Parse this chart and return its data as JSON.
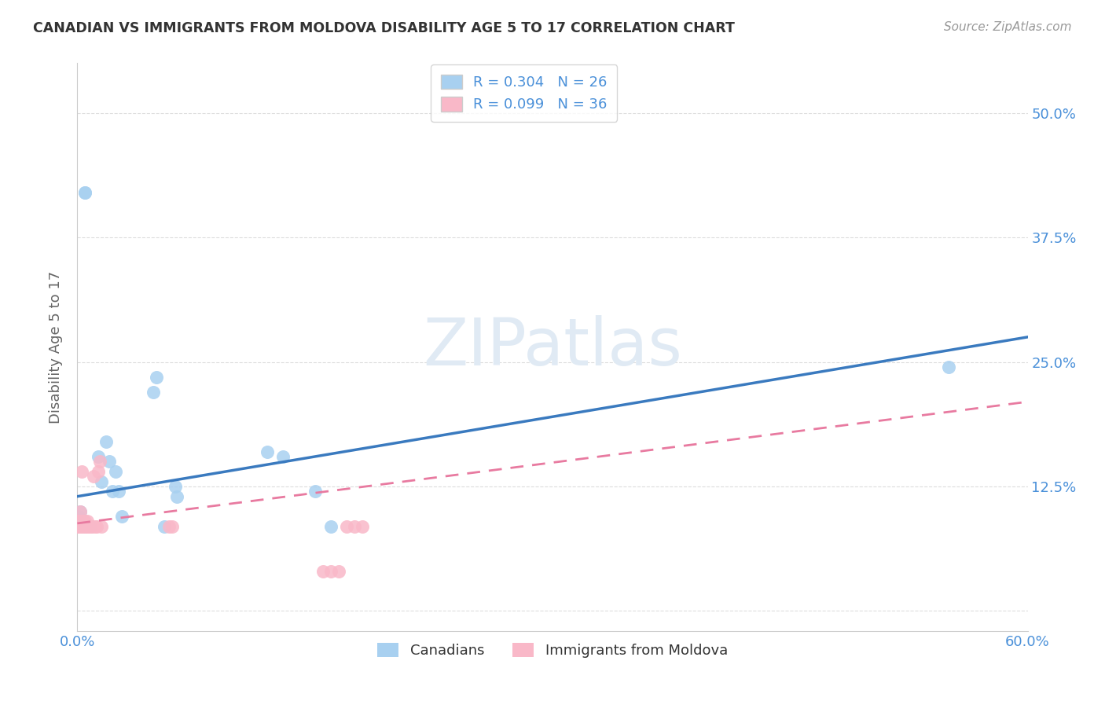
{
  "title": "CANADIAN VS IMMIGRANTS FROM MOLDOVA DISABILITY AGE 5 TO 17 CORRELATION CHART",
  "source": "Source: ZipAtlas.com",
  "ylabel": "Disability Age 5 to 17",
  "xlim": [
    0.0,
    0.6
  ],
  "ylim": [
    -0.02,
    0.55
  ],
  "yticks": [
    0.0,
    0.125,
    0.25,
    0.375,
    0.5
  ],
  "ytick_labels": [
    "",
    "12.5%",
    "25.0%",
    "37.5%",
    "50.0%"
  ],
  "xticks": [
    0.0,
    0.1,
    0.2,
    0.3,
    0.4,
    0.5,
    0.6
  ],
  "xtick_labels": [
    "0.0%",
    "",
    "",
    "",
    "",
    "",
    "60.0%"
  ],
  "canadian_R": 0.304,
  "canadian_N": 26,
  "moldova_R": 0.099,
  "moldova_N": 36,
  "canadian_color": "#a8d0f0",
  "moldova_color": "#f9b8c8",
  "trendline_canadian_color": "#3a7abf",
  "trendline_moldova_color": "#e87aa0",
  "background_color": "#ffffff",
  "watermark": "ZIPatlas",
  "canadian_x": [
    0.001,
    0.002,
    0.003,
    0.004,
    0.005,
    0.005,
    0.006,
    0.008,
    0.013,
    0.015,
    0.018,
    0.02,
    0.022,
    0.024,
    0.026,
    0.028,
    0.048,
    0.05,
    0.062,
    0.063,
    0.12,
    0.13,
    0.15,
    0.16,
    0.55,
    0.055
  ],
  "canadian_y": [
    0.095,
    0.1,
    0.085,
    0.085,
    0.42,
    0.42,
    0.085,
    0.085,
    0.155,
    0.13,
    0.17,
    0.15,
    0.12,
    0.14,
    0.12,
    0.095,
    0.22,
    0.235,
    0.125,
    0.115,
    0.16,
    0.155,
    0.12,
    0.085,
    0.245,
    0.085
  ],
  "moldova_x": [
    0.0,
    0.0,
    0.001,
    0.001,
    0.001,
    0.002,
    0.002,
    0.002,
    0.003,
    0.003,
    0.003,
    0.004,
    0.004,
    0.005,
    0.005,
    0.006,
    0.006,
    0.007,
    0.007,
    0.007,
    0.008,
    0.009,
    0.01,
    0.011,
    0.012,
    0.013,
    0.014,
    0.015,
    0.058,
    0.06,
    0.155,
    0.16,
    0.165,
    0.17,
    0.175,
    0.18
  ],
  "moldova_y": [
    0.085,
    0.09,
    0.085,
    0.09,
    0.085,
    0.085,
    0.09,
    0.1,
    0.085,
    0.09,
    0.14,
    0.085,
    0.09,
    0.085,
    0.09,
    0.085,
    0.09,
    0.085,
    0.085,
    0.085,
    0.085,
    0.085,
    0.135,
    0.085,
    0.085,
    0.14,
    0.15,
    0.085,
    0.085,
    0.085,
    0.04,
    0.04,
    0.04,
    0.085,
    0.085,
    0.085
  ],
  "trendline_canadian_x0": 0.0,
  "trendline_canadian_x1": 0.6,
  "trendline_canadian_y0": 0.115,
  "trendline_canadian_y1": 0.275,
  "trendline_moldova_x0": 0.0,
  "trendline_moldova_x1": 0.6,
  "trendline_moldova_y0": 0.088,
  "trendline_moldova_y1": 0.21
}
